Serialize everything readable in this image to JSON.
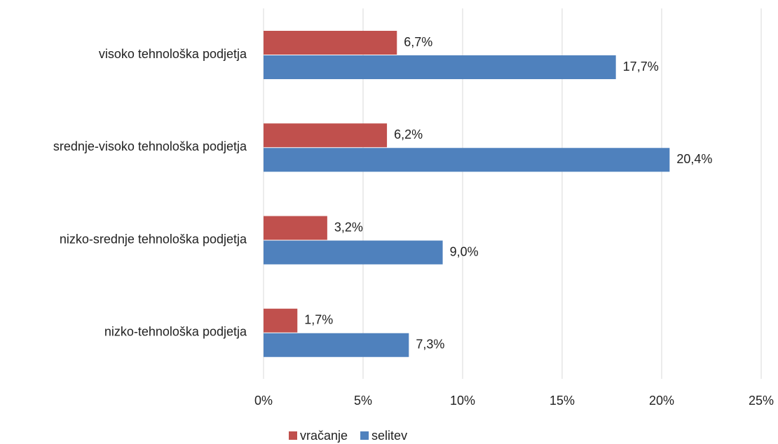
{
  "chart_data": {
    "type": "hbar",
    "categories": [
      "visoko tehnološka podjetja",
      "srednje-visoko tehnološka podjetja",
      "nizko-srednje tehnološka podjetja",
      "nizko-tehnološka podjetja"
    ],
    "series": [
      {
        "name": "vračanje",
        "color": "#c0504d",
        "values": [
          6.7,
          6.2,
          3.2,
          1.7
        ],
        "value_labels": [
          "6,7%",
          "6,2%",
          "3,2%",
          "1,7%"
        ]
      },
      {
        "name": "selitev",
        "color": "#4f81bd",
        "values": [
          17.7,
          20.4,
          9.0,
          7.3
        ],
        "value_labels": [
          "17,7%",
          "20,4%",
          "9,0%",
          "7,3%"
        ]
      }
    ],
    "xlim": [
      0,
      25
    ],
    "xticks": [
      {
        "value": 0,
        "label": "0%"
      },
      {
        "value": 5,
        "label": "5%"
      },
      {
        "value": 10,
        "label": "10%"
      },
      {
        "value": 15,
        "label": "15%"
      },
      {
        "value": 20,
        "label": "20%"
      },
      {
        "value": 25,
        "label": "25%"
      }
    ],
    "grid": true,
    "legend": "bottom"
  }
}
